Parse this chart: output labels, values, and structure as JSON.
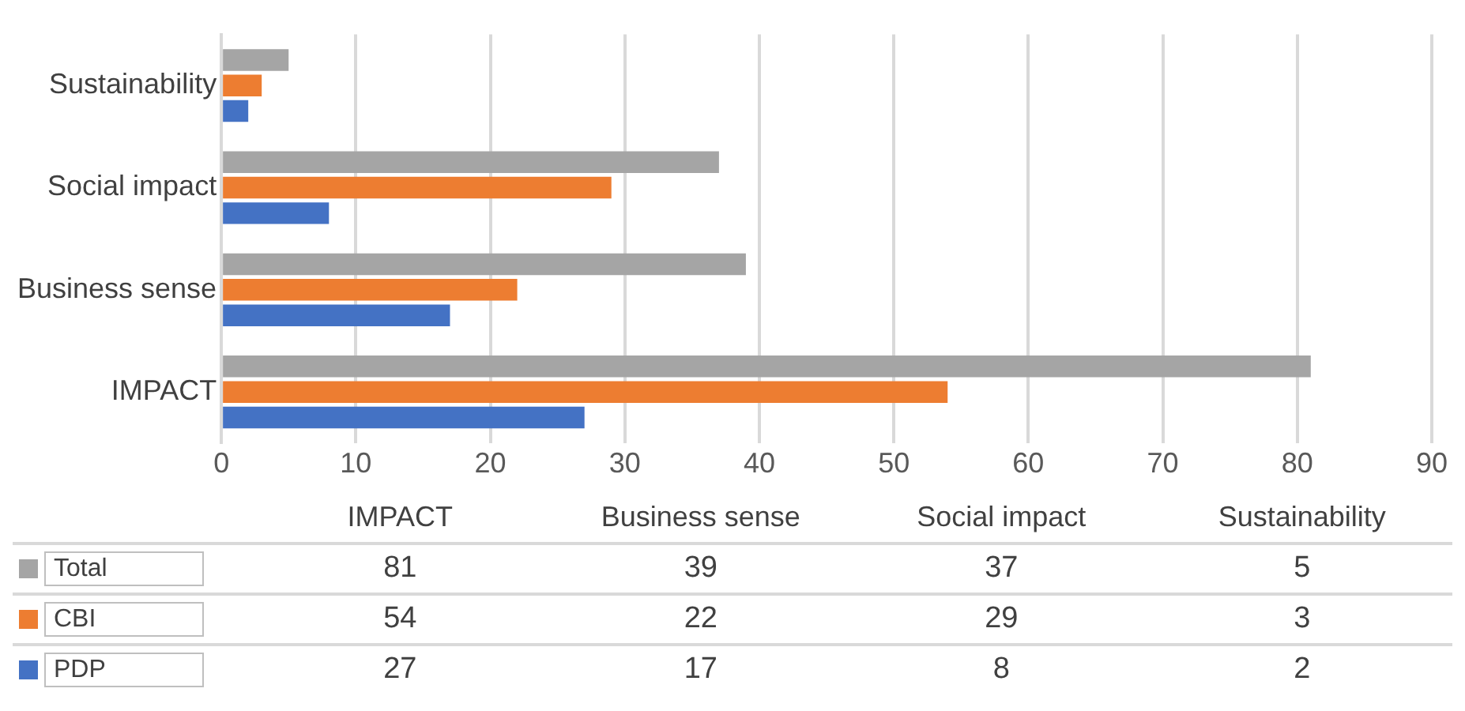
{
  "chart_data": [
    {
      "type": "bar",
      "orientation": "horizontal",
      "categories": [
        "Sustainability",
        "Social impact",
        "Business sense",
        "IMPACT"
      ],
      "series": [
        {
          "color": "#a5a5a5",
          "values": [
            5,
            37,
            39,
            81
          ]
        },
        {
          "color": "#ed7d31",
          "values": [
            3,
            29,
            22,
            54
          ]
        },
        {
          "color": "#4472c4",
          "values": [
            2,
            8,
            17,
            27
          ]
        }
      ],
      "xlim": [
        0,
        90
      ],
      "xticks": [
        0,
        10,
        20,
        30,
        40,
        50,
        60,
        70,
        80,
        90
      ],
      "grid": "x"
    },
    {
      "type": "other",
      "categories": [
        "IMPACT",
        "Business sense",
        "Social impact",
        "Sustainability"
      ],
      "series": [
        {
          "name": "Total",
          "color": "#a5a5a5",
          "values": [
            81,
            39,
            37,
            5
          ]
        },
        {
          "name": "CBI",
          "color": "#ed7d31",
          "values": [
            54,
            22,
            29,
            3
          ]
        },
        {
          "name": "PDP",
          "color": "#4472c4",
          "values": [
            27,
            17,
            8,
            2
          ]
        }
      ],
      "legend": "left",
      "data_labels": true
    }
  ]
}
